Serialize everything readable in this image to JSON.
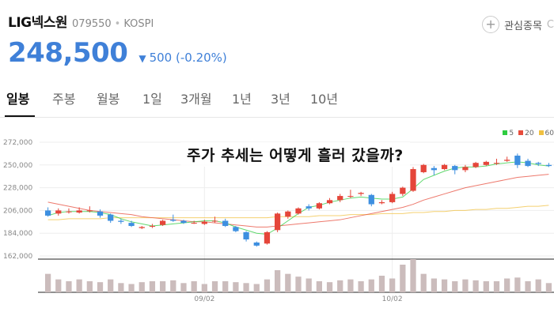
{
  "header": {
    "name": "LIG넥스원",
    "code": "079550",
    "dot": "•",
    "market": "KOSPI",
    "fav_plus": "+",
    "fav_label": "관심종목",
    "fav_more": "C",
    "price": "248,500",
    "arrow": "▼",
    "change": "500 (-0.20%)"
  },
  "tabs": [
    "일봉",
    "주봉",
    "월봉",
    "1일",
    "3개월",
    "1년",
    "3년",
    "10년"
  ],
  "overlay": "주가 추세는 어떻게 흘러 갔을까?",
  "colors": {
    "up": "#e5463a",
    "down": "#3d8fe0",
    "accent": "#3f80d8"
  },
  "legend": [
    {
      "label": "5",
      "color": "#2ecc40"
    },
    {
      "label": "20",
      "color": "#e74c3c"
    },
    {
      "label": "60",
      "color": "#f0c040"
    }
  ],
  "chart_data": {
    "type": "candlestick",
    "y_ticks": [
      "272,000",
      "250,000",
      "228,000",
      "206,000",
      "184,000",
      "162,000"
    ],
    "ylim": [
      162000,
      272000
    ],
    "x_labels": [
      {
        "label": "09/02",
        "index": 15
      },
      {
        "label": "10/02",
        "index": 33
      }
    ],
    "candles": [
      [
        206000,
        201000,
        209000,
        200000
      ],
      [
        203000,
        206000,
        208000,
        201000
      ],
      [
        205000,
        205000,
        208000,
        203000
      ],
      [
        204000,
        206000,
        209000,
        203000
      ],
      [
        206000,
        206000,
        210000,
        204000
      ],
      [
        205000,
        201000,
        207000,
        199000
      ],
      [
        202000,
        196000,
        203000,
        194000
      ],
      [
        196000,
        195000,
        198000,
        193000
      ],
      [
        194000,
        191000,
        196000,
        190000
      ],
      [
        189000,
        190000,
        191000,
        188000
      ],
      [
        191000,
        191000,
        193000,
        189000
      ],
      [
        192000,
        196000,
        197000,
        191000
      ],
      [
        197000,
        196000,
        202000,
        195000
      ],
      [
        196000,
        194000,
        197000,
        193000
      ],
      [
        194000,
        194000,
        196000,
        193000
      ],
      [
        193000,
        195000,
        197000,
        192000
      ],
      [
        196000,
        196000,
        200000,
        194000
      ],
      [
        196000,
        191000,
        198000,
        190000
      ],
      [
        190000,
        186000,
        191000,
        185000
      ],
      [
        185000,
        178000,
        186000,
        176000
      ],
      [
        175000,
        172000,
        176000,
        171000
      ],
      [
        174000,
        185000,
        186000,
        173000
      ],
      [
        187000,
        203000,
        204000,
        185000
      ],
      [
        200000,
        205000,
        206000,
        198000
      ],
      [
        203000,
        208000,
        209000,
        202000
      ],
      [
        210000,
        208000,
        212000,
        206000
      ],
      [
        208000,
        213000,
        214000,
        207000
      ],
      [
        213000,
        216000,
        218000,
        212000
      ],
      [
        216000,
        220000,
        222000,
        214000
      ],
      [
        220000,
        220000,
        226000,
        218000
      ],
      [
        222000,
        223000,
        224000,
        220000
      ],
      [
        221000,
        212000,
        222000,
        210000
      ],
      [
        213000,
        214000,
        216000,
        212000
      ],
      [
        214000,
        222000,
        224000,
        213000
      ],
      [
        222000,
        228000,
        229000,
        220000
      ],
      [
        225000,
        246000,
        248000,
        224000
      ],
      [
        243000,
        250000,
        251000,
        242000
      ],
      [
        247000,
        245000,
        249000,
        240000
      ],
      [
        246000,
        250000,
        251000,
        245000
      ],
      [
        249000,
        245000,
        250000,
        241000
      ],
      [
        245000,
        248000,
        250000,
        243000
      ],
      [
        248000,
        252000,
        253000,
        247000
      ],
      [
        250000,
        253000,
        254000,
        249000
      ],
      [
        252000,
        252000,
        256000,
        250000
      ],
      [
        254000,
        255000,
        258000,
        253000
      ],
      [
        259000,
        250000,
        261000,
        247000
      ],
      [
        254000,
        249000,
        256000,
        248000
      ],
      [
        252000,
        251000,
        253000,
        249000
      ],
      [
        250000,
        249000,
        252000,
        248000
      ]
    ],
    "volumes": [
      20,
      14,
      12,
      14,
      12,
      11,
      14,
      10,
      9,
      11,
      12,
      12,
      13,
      10,
      12,
      9,
      12,
      12,
      11,
      10,
      9,
      14,
      24,
      20,
      17,
      15,
      12,
      11,
      13,
      14,
      12,
      14,
      18,
      15,
      30,
      36,
      20,
      15,
      14,
      12,
      14,
      13,
      12,
      12,
      15,
      16,
      12,
      14,
      10
    ],
    "ma5_values": [
      201000,
      204000,
      205000,
      205000,
      205000,
      204000,
      202000,
      198000,
      195000,
      193000,
      191000,
      192000,
      193000,
      194000,
      195000,
      196000,
      196000,
      194000,
      190000,
      187000,
      184000,
      183000,
      189000,
      196000,
      203000,
      209000,
      211000,
      214000,
      216000,
      218000,
      219000,
      218000,
      217000,
      217000,
      219000,
      227000,
      236000,
      240000,
      244000,
      247000,
      248000,
      248000,
      249000,
      251000,
      252000,
      253000,
      252000,
      250000,
      249000
    ],
    "ma20_values": [
      214000,
      212000,
      210000,
      208000,
      206000,
      205000,
      204000,
      203000,
      202000,
      200000,
      199000,
      198000,
      197000,
      196000,
      195000,
      195000,
      194000,
      193000,
      192000,
      191000,
      190000,
      190000,
      191000,
      192000,
      193000,
      194000,
      195000,
      196000,
      197000,
      199000,
      201000,
      203000,
      205000,
      207000,
      209000,
      212000,
      216000,
      219000,
      222000,
      225000,
      228000,
      230000,
      232000,
      234000,
      236000,
      238000,
      239000,
      240000,
      241000
    ],
    "ma60_values": [
      197000,
      197000,
      198000,
      198000,
      198000,
      198000,
      199000,
      199000,
      199000,
      199000,
      199000,
      199000,
      199000,
      199000,
      199000,
      199000,
      199000,
      199000,
      199000,
      199000,
      199000,
      199000,
      200000,
      200000,
      200000,
      200000,
      201000,
      201000,
      201000,
      202000,
      202000,
      202000,
      203000,
      203000,
      203000,
      204000,
      204000,
      205000,
      205000,
      206000,
      206000,
      207000,
      207000,
      208000,
      208000,
      209000,
      210000,
      210000,
      211000
    ]
  }
}
